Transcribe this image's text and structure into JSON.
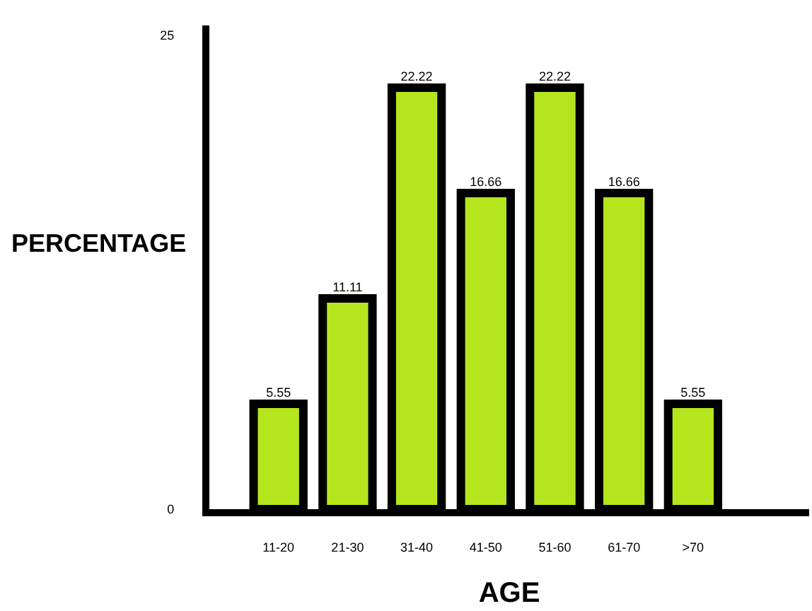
{
  "chart_data": {
    "type": "bar",
    "xlabel": "AGE",
    "ylabel": "PERCENTAGE",
    "categories": [
      "11-20",
      "21-30",
      "31-40",
      "41-50",
      "51-60",
      "61-70",
      ">70"
    ],
    "values": [
      5.55,
      11.11,
      22.22,
      16.66,
      22.22,
      16.66,
      5.55
    ],
    "color": "#b5e61d",
    "data_labels": true,
    "ylim": [
      0,
      25.5
    ],
    "yticks": [
      0,
      25
    ],
    "legend": false
  }
}
